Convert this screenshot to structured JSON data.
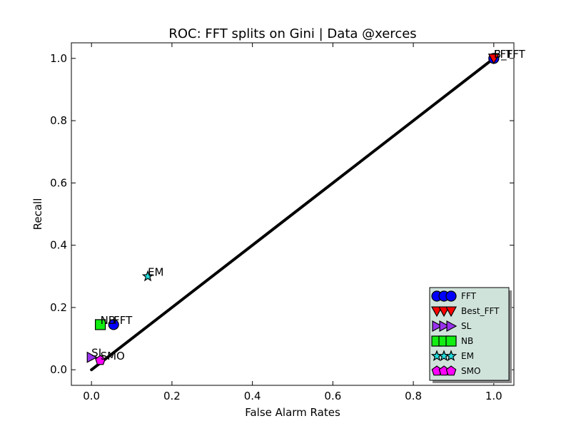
{
  "chart_data": {
    "type": "scatter",
    "title": "ROC: FFT splits on Gini  |  Data @xerces",
    "xlabel": "False Alarm Rates",
    "ylabel": "Recall",
    "xlim": [
      -0.05,
      1.05
    ],
    "ylim": [
      -0.05,
      1.05
    ],
    "xticks": [
      0.0,
      0.2,
      0.4,
      0.6,
      0.8,
      1.0
    ],
    "yticks": [
      0.0,
      0.2,
      0.4,
      0.6,
      0.8,
      1.0
    ],
    "tick_labels": [
      "0.0",
      "0.2",
      "0.4",
      "0.6",
      "0.8",
      "1.0"
    ],
    "grid": false,
    "legend_position": "lower-right",
    "diagonal": {
      "x": [
        0.0,
        1.0
      ],
      "y": [
        0.0,
        1.0
      ],
      "color": "#000000"
    },
    "series": [
      {
        "name": "FFT",
        "marker": "circle",
        "color": "#0000ff",
        "points": [
          {
            "x": 0.055,
            "y": 0.145,
            "label": "FFT"
          },
          {
            "x": 1.0,
            "y": 1.0,
            "label": "FFT"
          }
        ]
      },
      {
        "name": "Best_FFT",
        "marker": "triangle-down",
        "color": "#ff0000",
        "points": [
          {
            "x": 1.0,
            "y": 1.0,
            "label": "B_FFT"
          }
        ]
      },
      {
        "name": "SL",
        "marker": "triangle-right",
        "color": "#9933ee",
        "points": [
          {
            "x": 0.0,
            "y": 0.04,
            "label": "SL"
          }
        ]
      },
      {
        "name": "NB",
        "marker": "square",
        "color": "#11ee11",
        "points": [
          {
            "x": 0.022,
            "y": 0.145,
            "label": "NB"
          }
        ]
      },
      {
        "name": "EM",
        "marker": "star",
        "color": "#22dddd",
        "points": [
          {
            "x": 0.14,
            "y": 0.3,
            "label": "EM"
          }
        ]
      },
      {
        "name": "SMO",
        "marker": "pentagon",
        "color": "#ff00ff",
        "points": [
          {
            "x": 0.022,
            "y": 0.03,
            "label": "SMO"
          }
        ]
      }
    ]
  }
}
